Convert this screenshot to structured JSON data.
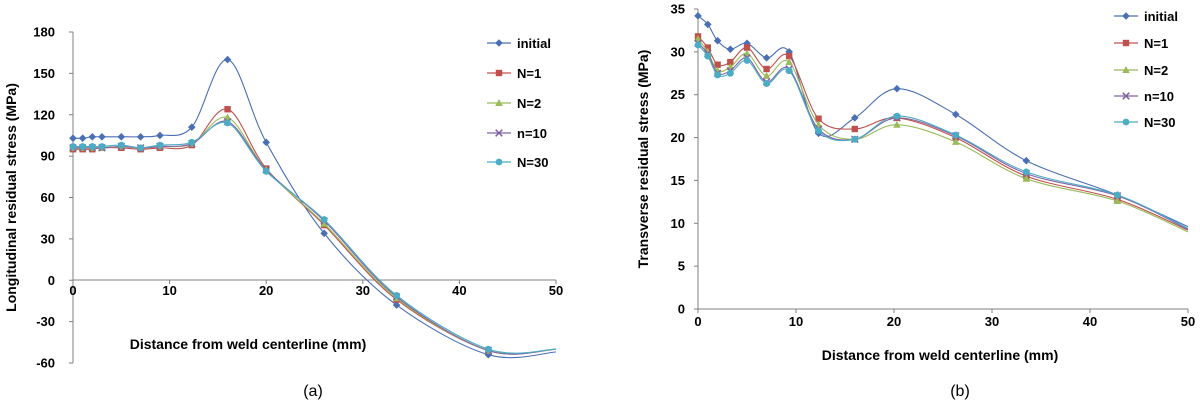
{
  "chart_data": [
    {
      "type": "line",
      "panel_label": "(a)",
      "xlabel": "Distance from weld centerline (mm)",
      "ylabel": "Longitudinal residual stress (MPa)",
      "xlim": [
        0,
        50
      ],
      "ylim": [
        -60,
        180
      ],
      "xticks": [
        "0",
        "10",
        "20",
        "30",
        "40",
        "50"
      ],
      "yticks": [
        "-60",
        "-30",
        "0",
        "30",
        "60",
        "90",
        "120",
        "150",
        "180"
      ],
      "series": [
        {
          "name": "initial",
          "color": "#4a6fb5",
          "marker": "diamond",
          "x": [
            0,
            1,
            2,
            3,
            5,
            7,
            9,
            12.3,
            16,
            20,
            26,
            33.5,
            43,
            50
          ],
          "y": [
            103,
            103,
            104,
            104,
            104,
            104,
            105,
            111,
            160,
            100,
            34,
            -18,
            -54,
            -52
          ]
        },
        {
          "name": "N=1",
          "color": "#c0504d",
          "marker": "square",
          "x": [
            0,
            1,
            2,
            3,
            5,
            7,
            9,
            12.3,
            16,
            20,
            26,
            33.5,
            43,
            50
          ],
          "y": [
            95,
            95,
            95,
            96,
            96,
            95,
            96,
            98,
            124,
            81,
            40,
            -14,
            -51,
            -50
          ]
        },
        {
          "name": "N=2",
          "color": "#9bbb59",
          "marker": "triangle",
          "x": [
            0,
            1,
            2,
            3,
            5,
            7,
            9,
            12.3,
            16,
            20,
            26,
            33.5,
            43,
            50
          ],
          "y": [
            96,
            96,
            96,
            96,
            97,
            96,
            97,
            99,
            118,
            80,
            41,
            -13,
            -51,
            -50
          ]
        },
        {
          "name": "n=10",
          "color": "#8064a2",
          "marker": "x",
          "x": [
            0,
            1,
            2,
            3,
            5,
            7,
            9,
            12.3,
            16,
            20,
            26,
            33.5,
            43,
            50
          ],
          "y": [
            96,
            96,
            96,
            96,
            97,
            96,
            97,
            99,
            115,
            80,
            43,
            -12,
            -51,
            -50
          ]
        },
        {
          "name": "N=30",
          "color": "#4bacc6",
          "marker": "circle",
          "x": [
            0,
            1,
            2,
            3,
            5,
            7,
            9,
            12.3,
            16,
            20,
            26,
            33.5,
            43,
            50
          ],
          "y": [
            97,
            97,
            97,
            97,
            98,
            96,
            98,
            100,
            114,
            79,
            44,
            -11,
            -50,
            -50
          ]
        }
      ]
    },
    {
      "type": "line",
      "panel_label": "(b)",
      "xlabel": "Distance from weld centerline (mm)",
      "ylabel": "Transverse residual stress (MPa)",
      "xlim": [
        0,
        50
      ],
      "ylim": [
        0,
        35
      ],
      "xticks": [
        "0",
        "10",
        "20",
        "30",
        "40",
        "50"
      ],
      "yticks": [
        "0",
        "5",
        "10",
        "15",
        "20",
        "25",
        "30",
        "35"
      ],
      "series": [
        {
          "name": "initial",
          "color": "#4a6fb5",
          "marker": "diamond",
          "x": [
            0,
            1,
            2,
            3.3,
            5,
            7,
            9.3,
            12.3,
            16,
            20.3,
            26.3,
            33.5,
            42.8,
            50
          ],
          "y": [
            34.2,
            33.2,
            31.3,
            30.3,
            31,
            29.3,
            30,
            20.5,
            22.3,
            25.7,
            22.7,
            17.3,
            13.3,
            9.6
          ]
        },
        {
          "name": "N=1",
          "color": "#c0504d",
          "marker": "square",
          "x": [
            0,
            1,
            2,
            3.3,
            5,
            7,
            9.3,
            12.3,
            16,
            20.3,
            26.3,
            33.5,
            42.8,
            50
          ],
          "y": [
            31.8,
            30.5,
            28.5,
            28.8,
            30.5,
            28,
            29.5,
            22.2,
            21,
            22.3,
            20,
            15.5,
            12.8,
            9.2
          ]
        },
        {
          "name": "N=2",
          "color": "#9bbb59",
          "marker": "triangle",
          "x": [
            0,
            1,
            2,
            3.3,
            5,
            7,
            9.3,
            12.3,
            16,
            20.3,
            26.3,
            33.5,
            42.8,
            50
          ],
          "y": [
            31.5,
            30,
            27.8,
            28.2,
            29.8,
            27.2,
            28.8,
            21.5,
            19.8,
            21.5,
            19.5,
            15.2,
            12.6,
            9
          ]
        },
        {
          "name": "n=10",
          "color": "#8064a2",
          "marker": "x",
          "x": [
            0,
            1,
            2,
            3.3,
            5,
            7,
            9.3,
            12.3,
            16,
            20.3,
            26.3,
            33.5,
            42.8,
            50
          ],
          "y": [
            31,
            29.8,
            27.5,
            27.8,
            29.3,
            26.5,
            28,
            21,
            19.8,
            22.3,
            20.2,
            15.8,
            13.2,
            9.3
          ]
        },
        {
          "name": "N=30",
          "color": "#4bacc6",
          "marker": "circle",
          "x": [
            0,
            1,
            2,
            3.3,
            5,
            7,
            9.3,
            12.3,
            16,
            20.3,
            26.3,
            33.5,
            42.8,
            50
          ],
          "y": [
            30.8,
            29.5,
            27.3,
            27.5,
            29,
            26.3,
            27.8,
            20.8,
            19.8,
            22.5,
            20.3,
            16,
            13.3,
            9.4
          ]
        }
      ]
    }
  ]
}
